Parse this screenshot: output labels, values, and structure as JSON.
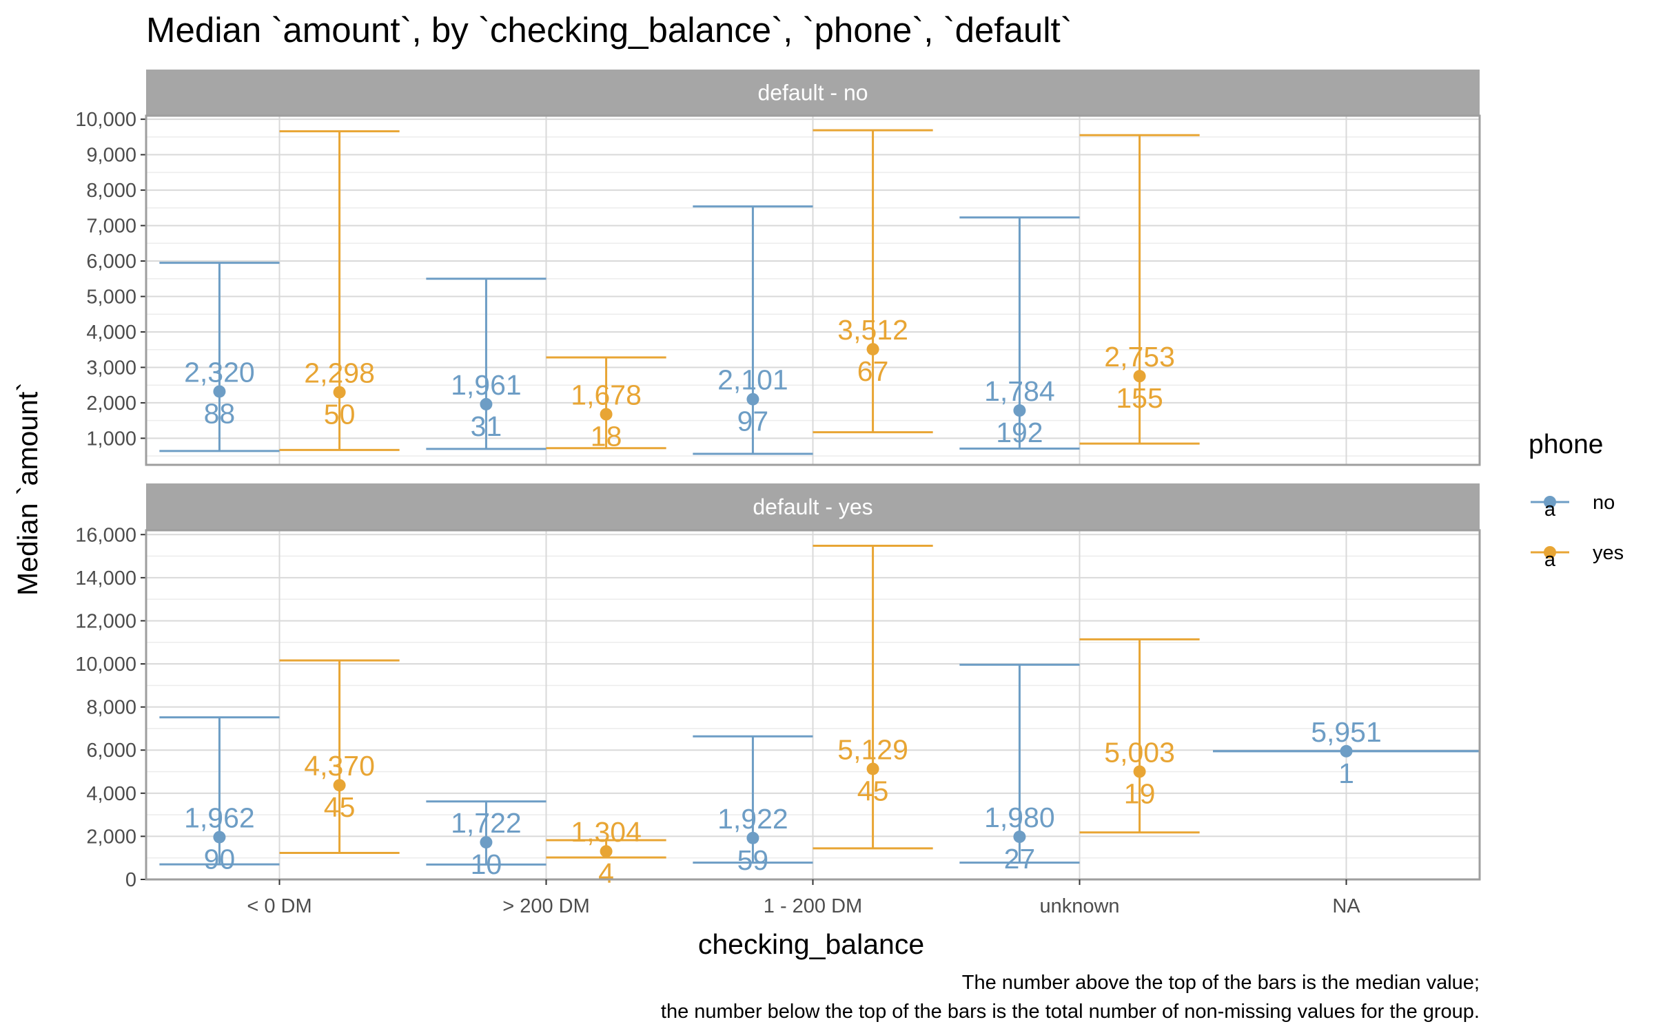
{
  "colors": {
    "no": "#6d9dc5",
    "yes": "#e8a534",
    "strip": "#a6a6a6",
    "grid": "#d9d9d9",
    "panel_border": "#9e9e9e"
  },
  "chart_data": {
    "type": "errorbar",
    "title": "Median `amount`, by `checking_balance`, `phone`, `default`",
    "xlabel": "checking_balance",
    "ylabel": "Median `amount`",
    "categories": [
      "< 0 DM",
      "> 200 DM",
      "1 - 200 DM",
      "unknown",
      "NA"
    ],
    "legend": {
      "title": "phone",
      "entries": [
        "no",
        "yes"
      ],
      "placement": "right",
      "key_glyph": "a"
    },
    "caption": [
      "The number above the top of the bars is the median value;",
      "the number below the top of the bars is the total number of non-missing values for the group."
    ],
    "panels": [
      {
        "strip": "default - no",
        "ylim": [
          250,
          10100
        ],
        "yticks": [
          1000,
          2000,
          3000,
          4000,
          5000,
          6000,
          7000,
          8000,
          9000,
          10000
        ],
        "ytick_labels": [
          "1,000",
          "2,000",
          "3,000",
          "4,000",
          "5,000",
          "6,000",
          "7,000",
          "8,000",
          "9,000",
          "10,000"
        ],
        "groups": [
          {
            "category": "< 0 DM",
            "phone": "no",
            "median": 2320,
            "median_label": "2,320",
            "n": "88",
            "low": 640,
            "high": 5950
          },
          {
            "category": "< 0 DM",
            "phone": "yes",
            "median": 2298,
            "median_label": "2,298",
            "n": "50",
            "low": 670,
            "high": 9660
          },
          {
            "category": "> 200 DM",
            "phone": "no",
            "median": 1961,
            "median_label": "1,961",
            "n": "31",
            "low": 700,
            "high": 5500
          },
          {
            "category": "> 200 DM",
            "phone": "yes",
            "median": 1678,
            "median_label": "1,678",
            "n": "18",
            "low": 720,
            "high": 3280
          },
          {
            "category": "1 - 200 DM",
            "phone": "no",
            "median": 2101,
            "median_label": "2,101",
            "n": "97",
            "low": 560,
            "high": 7540
          },
          {
            "category": "1 - 200 DM",
            "phone": "yes",
            "median": 3512,
            "median_label": "3,512",
            "n": "67",
            "low": 1170,
            "high": 9690
          },
          {
            "category": "unknown",
            "phone": "no",
            "median": 1784,
            "median_label": "1,784",
            "n": "192",
            "low": 710,
            "high": 7230
          },
          {
            "category": "unknown",
            "phone": "yes",
            "median": 2753,
            "median_label": "2,753",
            "n": "155",
            "low": 850,
            "high": 9550
          }
        ]
      },
      {
        "strip": "default - yes",
        "ylim": [
          0,
          16200
        ],
        "yticks": [
          0,
          2000,
          4000,
          6000,
          8000,
          10000,
          12000,
          14000,
          16000
        ],
        "ytick_labels": [
          "0",
          "2,000",
          "4,000",
          "6,000",
          "8,000",
          "10,000",
          "12,000",
          "14,000",
          "16,000"
        ],
        "groups": [
          {
            "category": "< 0 DM",
            "phone": "no",
            "median": 1962,
            "median_label": "1,962",
            "n": "90",
            "low": 700,
            "high": 7520
          },
          {
            "category": "< 0 DM",
            "phone": "yes",
            "median": 4370,
            "median_label": "4,370",
            "n": "45",
            "low": 1230,
            "high": 10160
          },
          {
            "category": "> 200 DM",
            "phone": "no",
            "median": 1722,
            "median_label": "1,722",
            "n": "10",
            "low": 690,
            "high": 3620
          },
          {
            "category": "> 200 DM",
            "phone": "yes",
            "median": 1304,
            "median_label": "1,304",
            "n": "4",
            "low": 1020,
            "high": 1820
          },
          {
            "category": "1 - 200 DM",
            "phone": "no",
            "median": 1922,
            "median_label": "1,922",
            "n": "59",
            "low": 780,
            "high": 6640
          },
          {
            "category": "1 - 200 DM",
            "phone": "yes",
            "median": 5129,
            "median_label": "5,129",
            "n": "45",
            "low": 1440,
            "high": 15480
          },
          {
            "category": "unknown",
            "phone": "no",
            "median": 1980,
            "median_label": "1,980",
            "n": "27",
            "low": 780,
            "high": 9960
          },
          {
            "category": "unknown",
            "phone": "yes",
            "median": 5003,
            "median_label": "5,003",
            "n": "19",
            "low": 2180,
            "high": 11140
          },
          {
            "category": "NA",
            "phone": "no",
            "median": 5951,
            "median_label": "5,951",
            "n": "1",
            "low": 5951,
            "high": 5951
          }
        ]
      }
    ]
  }
}
